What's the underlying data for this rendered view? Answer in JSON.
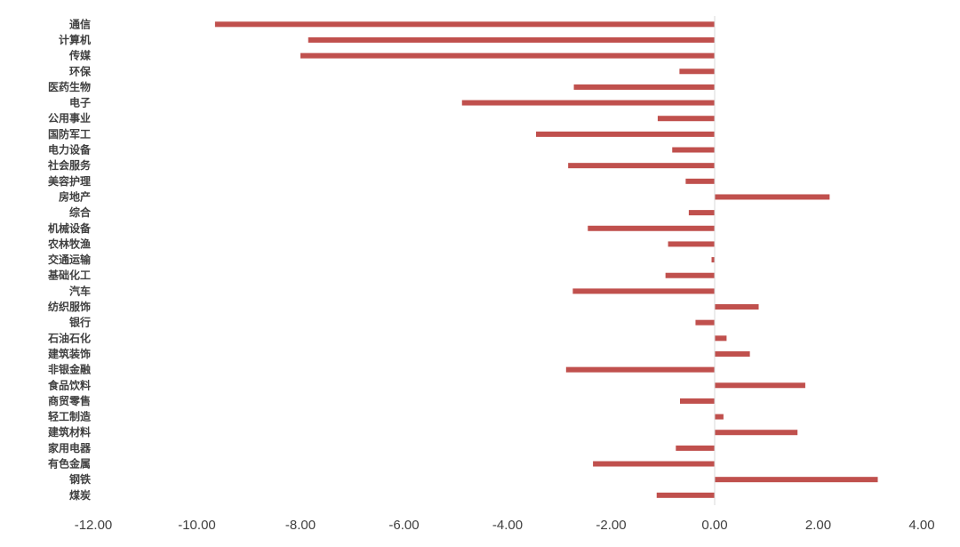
{
  "chart_data": {
    "type": "bar",
    "orientation": "horizontal",
    "title": "",
    "xlabel": "",
    "ylabel": "",
    "xlim": [
      -12,
      4
    ],
    "x_ticks": [
      -12,
      -10,
      -8,
      -6,
      -4,
      -2,
      0,
      2,
      4
    ],
    "x_tick_labels": [
      "-12.00",
      "-10.00",
      "-8.00",
      "-6.00",
      "-4.00",
      "-2.00",
      "0.00",
      "2.00",
      "4.00"
    ],
    "grid": false,
    "legend": "none",
    "bar_color": "#c0504d",
    "categories": [
      "通信",
      "计算机",
      "传媒",
      "环保",
      "医药生物",
      "电子",
      "公用事业",
      "国防军工",
      "电力设备",
      "社会服务",
      "美容护理",
      "房地产",
      "综合",
      "机械设备",
      "农林牧渔",
      "交通运输",
      "基础化工",
      "汽车",
      "纺织服饰",
      "银行",
      "石油石化",
      "建筑装饰",
      "非银金融",
      "食品饮料",
      "商贸零售",
      "轻工制造",
      "建筑材料",
      "家用电器",
      "有色金属",
      "钢铁",
      "煤炭"
    ],
    "values": [
      -9.65,
      -7.85,
      -8.0,
      -0.68,
      -2.72,
      -4.88,
      -1.1,
      -3.45,
      -0.82,
      -2.83,
      -0.56,
      2.22,
      -0.5,
      -2.45,
      -0.9,
      -0.06,
      -0.95,
      -2.74,
      0.85,
      -0.37,
      0.23,
      0.68,
      -2.87,
      1.75,
      -0.67,
      0.17,
      1.6,
      -0.75,
      -2.35,
      3.15,
      -1.12
    ]
  }
}
